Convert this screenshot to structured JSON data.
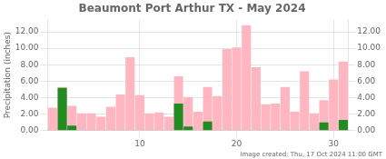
{
  "chart_data": {
    "type": "bar",
    "title": "Beaumont Port Arthur TX - May 2024",
    "y_label": "Precipitation (inches)",
    "annotations": [
      "Image created: Thu, 17 Oct 2024 11:00 GMT"
    ],
    "x": [
      1,
      2,
      3,
      4,
      5,
      6,
      7,
      8,
      9,
      10,
      11,
      12,
      13,
      14,
      15,
      16,
      17,
      18,
      19,
      20,
      21,
      22,
      23,
      24,
      25,
      26,
      27,
      28,
      29,
      30,
      31
    ],
    "series": [
      {
        "color": "#FFB6C1",
        "values": [
          2.8,
          5.3,
          3.0,
          2.1,
          2.1,
          1.7,
          2.9,
          4.4,
          8.9,
          4.3,
          2.1,
          2.2,
          1.7,
          6.6,
          4.1,
          2.3,
          5.3,
          4.2,
          9.9,
          10.1,
          12.8,
          7.7,
          3.2,
          3.3,
          5.3,
          2.3,
          7.2,
          2.1,
          3.7,
          6.2,
          8.4
        ]
      },
      {
        "color": "#228B22",
        "values": [
          0.0,
          5.2,
          0.6,
          0.0,
          0.0,
          0.0,
          0.0,
          0.0,
          0.0,
          0.0,
          0.0,
          0.0,
          0.0,
          3.3,
          0.5,
          0.0,
          1.1,
          0.0,
          0.0,
          0.0,
          0.0,
          0.0,
          0.0,
          0.0,
          0.0,
          0.0,
          0.0,
          0.0,
          1.0,
          0.0,
          1.3
        ]
      }
    ],
    "xlim": [
      0.5,
      31.5
    ],
    "xticks": [
      10,
      20,
      30
    ],
    "ylim": [
      0,
      13.5
    ],
    "yticks": [
      {
        "value": 0.0,
        "label": "0.00"
      },
      {
        "value": 2.0,
        "label": "2.00"
      },
      {
        "value": 4.0,
        "label": "4.00"
      },
      {
        "value": 6.0,
        "label": "6.00"
      },
      {
        "value": 8.0,
        "label": "8.00"
      },
      {
        "value": 10.0,
        "label": "10.00"
      },
      {
        "value": 12.0,
        "label": "12.00"
      }
    ],
    "y2lim": [
      0,
      13.5
    ],
    "y2ticks": [
      {
        "value": 0.0,
        "label": "0.00"
      },
      {
        "value": 2.0,
        "label": "2.00"
      },
      {
        "value": 4.0,
        "label": "4.00"
      },
      {
        "value": 6.0,
        "label": "6.00"
      },
      {
        "value": 8.0,
        "label": "8.00"
      },
      {
        "value": 10.0,
        "label": "10.00"
      },
      {
        "value": 12.0,
        "label": "12.00"
      }
    ],
    "grid": true
  }
}
